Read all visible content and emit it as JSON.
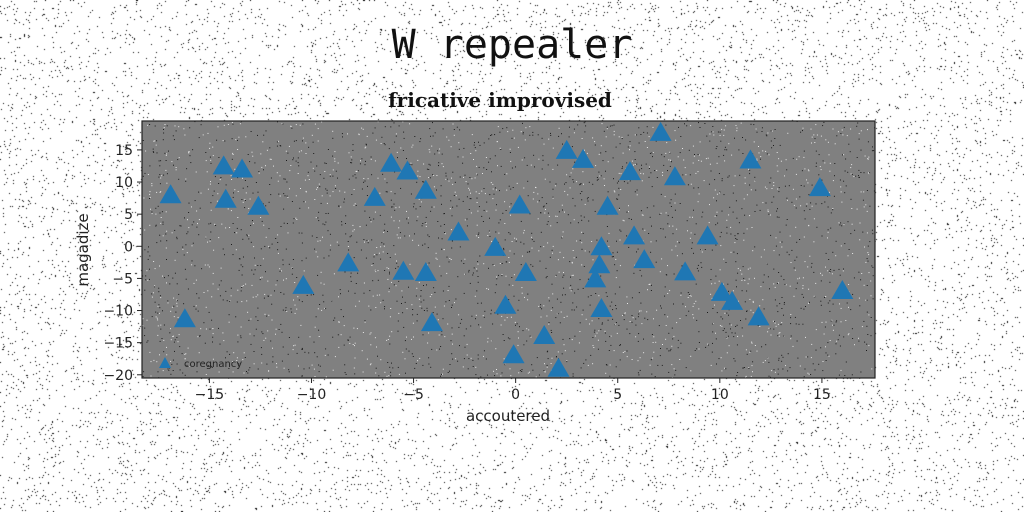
{
  "suptitle": "W repealer",
  "chart_data": {
    "type": "scatter",
    "title": "fricative improvised",
    "xlabel": "accoutered",
    "ylabel": "magadize",
    "xlim": [
      -18.3,
      17.6
    ],
    "ylim": [
      -20.5,
      19.5
    ],
    "xticks": [
      -15,
      -10,
      -5,
      0,
      5,
      10,
      15
    ],
    "xtick_labels": [
      "−15",
      "−10",
      "−5",
      "0",
      "5",
      "10",
      "15"
    ],
    "yticks": [
      -20,
      -15,
      -10,
      -5,
      0,
      5,
      10,
      15
    ],
    "ytick_labels": [
      "−20",
      "−15",
      "−10",
      "−5",
      "0",
      "5",
      "10",
      "15"
    ],
    "grid": false,
    "legend_position": "lower-left",
    "plot_background": "#808080",
    "marker": "triangle-up",
    "series": [
      {
        "name": "coregnancy",
        "color": "#1f77b4",
        "points": [
          [
            7.1,
            17.8
          ],
          [
            2.5,
            15.0
          ],
          [
            3.3,
            13.6
          ],
          [
            11.5,
            13.5
          ],
          [
            -14.3,
            12.6
          ],
          [
            -13.4,
            12.1
          ],
          [
            -6.1,
            13.0
          ],
          [
            -5.3,
            11.8
          ],
          [
            5.6,
            11.7
          ],
          [
            7.8,
            10.9
          ],
          [
            14.9,
            9.2
          ],
          [
            -16.9,
            8.1
          ],
          [
            -4.4,
            8.8
          ],
          [
            -14.2,
            7.4
          ],
          [
            -12.6,
            6.3
          ],
          [
            -6.9,
            7.7
          ],
          [
            0.2,
            6.5
          ],
          [
            4.5,
            6.3
          ],
          [
            -2.8,
            2.3
          ],
          [
            5.8,
            1.7
          ],
          [
            9.4,
            1.7
          ],
          [
            -1.0,
            -0.1
          ],
          [
            4.2,
            0.0
          ],
          [
            -8.2,
            -2.5
          ],
          [
            6.3,
            -2.0
          ],
          [
            4.1,
            -2.8
          ],
          [
            -5.5,
            -3.8
          ],
          [
            -4.4,
            -4.0
          ],
          [
            0.5,
            -4.0
          ],
          [
            8.3,
            -3.9
          ],
          [
            3.9,
            -5.0
          ],
          [
            -10.4,
            -6.0
          ],
          [
            16.0,
            -6.8
          ],
          [
            10.1,
            -7.1
          ],
          [
            10.6,
            -8.5
          ],
          [
            -0.5,
            -9.1
          ],
          [
            4.2,
            -9.6
          ],
          [
            -16.2,
            -11.2
          ],
          [
            11.9,
            -10.9
          ],
          [
            -4.1,
            -11.8
          ],
          [
            1.4,
            -13.8
          ],
          [
            -0.1,
            -16.8
          ],
          [
            2.1,
            -18.9
          ]
        ]
      }
    ]
  }
}
